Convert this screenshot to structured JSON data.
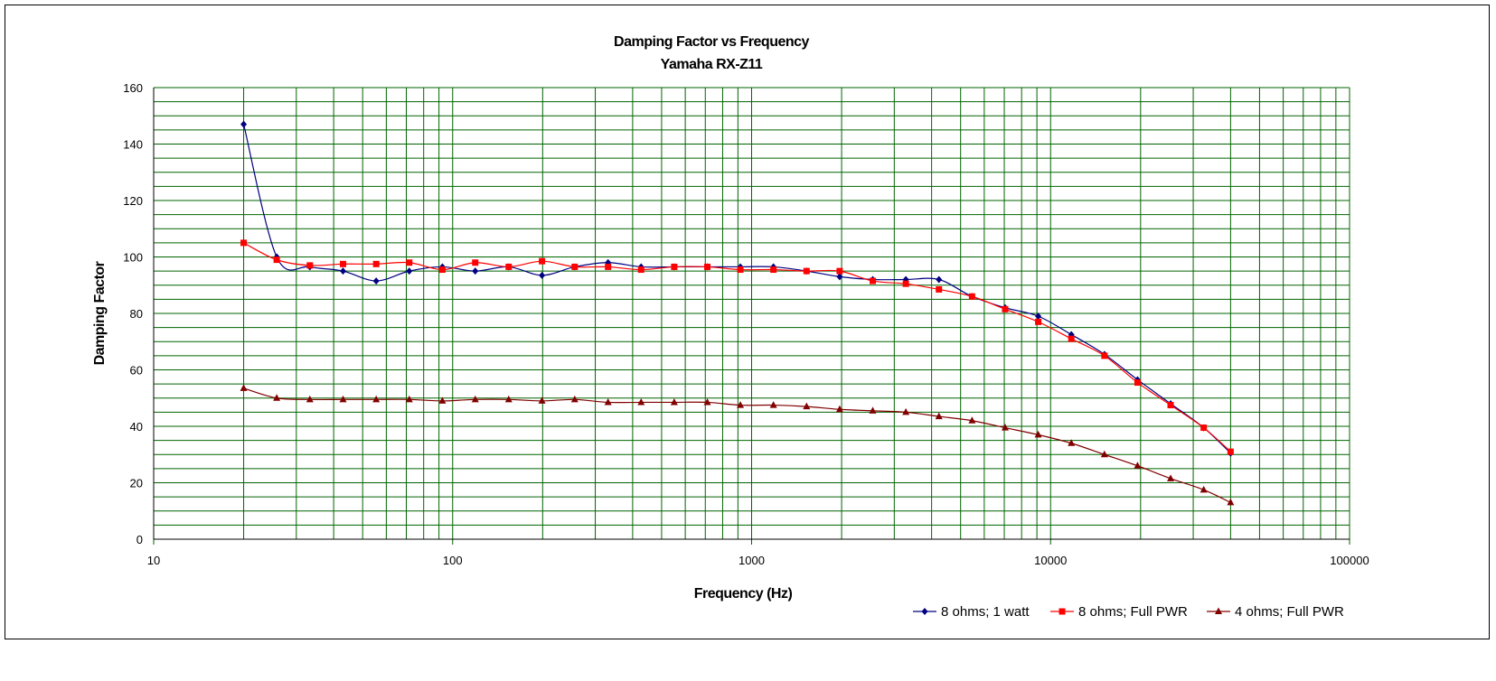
{
  "chart_data": {
    "type": "line",
    "title": "Damping Factor  vs Frequency",
    "subtitle": "Yamaha RX-Z11",
    "xlabel": "Frequency (Hz)",
    "ylabel": "Damping Factor",
    "xscale": "log",
    "xlim": [
      10,
      100000
    ],
    "ylim": [
      0,
      160
    ],
    "xticks": [
      "10",
      "100",
      "1000",
      "10000",
      "100000"
    ],
    "yticks": [
      "0",
      "20",
      "40",
      "60",
      "80",
      "100",
      "120",
      "140",
      "160"
    ],
    "grid": true,
    "legend": "bottom-right",
    "x": [
      20,
      25.8,
      33.3,
      43,
      55.5,
      71.6,
      92.4,
      119,
      154,
      199,
      256,
      331,
      427,
      551,
      711,
      917,
      1183,
      1527,
      1970,
      2542,
      3280,
      4232,
      5461,
      7047,
      9093,
      11733,
      15140,
      19536,
      25207,
      32526,
      40000
    ],
    "series": [
      {
        "name": "8 ohms; 1 watt",
        "color": "#000080",
        "marker": "diamond",
        "values": [
          147,
          100,
          96.5,
          95,
          91.5,
          95,
          96.5,
          95,
          96.5,
          93.5,
          96.5,
          98,
          96.5,
          96.5,
          96.5,
          96.5,
          96.5,
          95,
          93,
          92,
          92,
          92,
          86,
          82,
          79,
          72.5,
          65.5,
          56.5,
          48,
          39.5,
          30.5
        ]
      },
      {
        "name": "8 ohms; Full PWR",
        "color": "#ff0000",
        "marker": "square",
        "values": [
          105,
          99,
          97,
          97.5,
          97.5,
          98,
          95.5,
          98,
          96.5,
          98.5,
          96.5,
          96.5,
          95.5,
          96.5,
          96.5,
          95.5,
          95.5,
          95,
          95,
          91.5,
          90.5,
          88.5,
          86,
          81.5,
          77,
          71,
          65,
          55.5,
          47.5,
          39.5,
          31
        ]
      },
      {
        "name": "4 ohms; Full PWR",
        "color": "#800000",
        "marker": "triangle",
        "values": [
          53.5,
          50,
          49.5,
          49.5,
          49.5,
          49.5,
          49,
          49.5,
          49.5,
          49,
          49.5,
          48.5,
          48.5,
          48.5,
          48.5,
          47.5,
          47.5,
          47,
          46,
          45.5,
          45,
          43.5,
          42,
          39.5,
          37,
          34,
          30,
          26,
          21.5,
          17.5,
          13
        ]
      }
    ]
  }
}
